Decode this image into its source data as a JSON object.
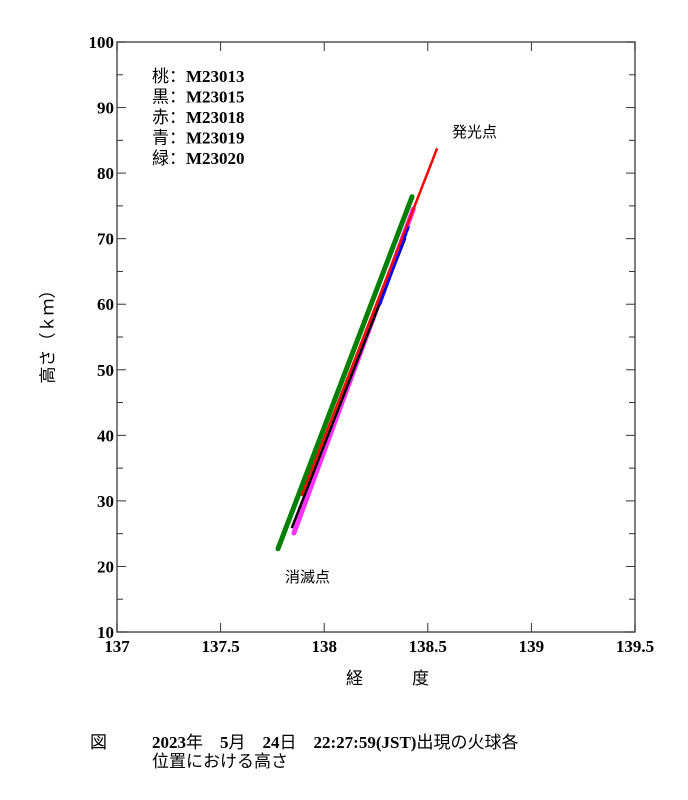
{
  "chart_data": {
    "type": "scatter",
    "title": "",
    "xlabel": "経　度",
    "ylabel": "高さ（ｋｍ）",
    "xlim": [
      137,
      139.5
    ],
    "ylim": [
      10,
      100
    ],
    "x_ticks": [
      "137",
      "137.5",
      "138",
      "138.5",
      "139",
      "139.5"
    ],
    "y_ticks": [
      "10",
      "20",
      "30",
      "40",
      "50",
      "60",
      "70",
      "80",
      "90",
      "100"
    ],
    "grid": false,
    "legend_position": "upper-left-inside",
    "series": [
      {
        "name": "桃：M23013",
        "color_name": "桃",
        "station": "M23013",
        "color": "#ff33ff",
        "x": [
          137.854,
          138.43
        ],
        "y": [
          25.1,
          74.5
        ]
      },
      {
        "name": "黒：M23015",
        "color_name": "黒",
        "station": "M23015",
        "color": "#000000",
        "x": [
          137.845,
          138.39
        ],
        "y": [
          26.0,
          70.0
        ]
      },
      {
        "name": "赤：M23018",
        "color_name": "赤",
        "station": "M23018",
        "color": "#ff0000",
        "x": [
          137.893,
          138.544
        ],
        "y": [
          30.9,
          83.7
        ]
      },
      {
        "name": "青：M23019",
        "color_name": "青",
        "station": "M23019",
        "color": "#0000ff",
        "x": [
          138.27,
          138.41
        ],
        "y": [
          60.0,
          72.0
        ]
      },
      {
        "name": "緑：M23020",
        "color_name": "緑",
        "station": "M23020",
        "color": "#008000",
        "x": [
          137.777,
          138.424
        ],
        "y": [
          22.7,
          76.4
        ]
      }
    ],
    "annotations": [
      {
        "text": "発光点",
        "x": 138.63,
        "y": 86
      },
      {
        "text": "消滅点",
        "x": 137.84,
        "y": 18.5
      }
    ]
  },
  "legend": [
    {
      "color_name": "桃",
      "sep": "：",
      "id": "M23013"
    },
    {
      "color_name": "黒",
      "sep": "：",
      "id": "M23015"
    },
    {
      "color_name": "赤",
      "sep": "：",
      "id": "M23018"
    },
    {
      "color_name": "青",
      "sep": "：",
      "id": "M23019"
    },
    {
      "color_name": "緑",
      "sep": "：",
      "id": "M23020"
    }
  ],
  "annotations": {
    "start": "発光点",
    "end": "消滅点"
  },
  "axes": {
    "xlabel": "経　度",
    "ylabel": "高さ（ｋｍ）"
  },
  "caption": {
    "fig": "図",
    "year": "2023",
    "year_unit": "年",
    "month": "5",
    "month_unit": "月",
    "day": "24",
    "day_unit": "日",
    "time": "22:27:59(JST)",
    "line1_tail": "出現の火球各",
    "line2": "位置における高さ"
  }
}
